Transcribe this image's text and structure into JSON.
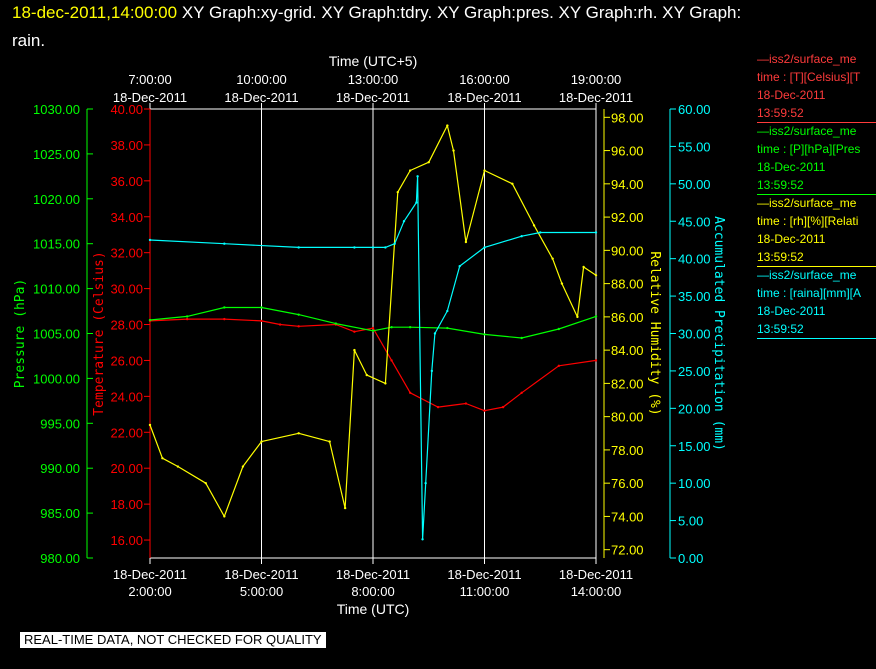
{
  "header": {
    "timestamp": "18-dec-2011,14:00:00",
    "graphs_line1": "XY Graph:xy-grid.  XY Graph:tdry.  XY Graph:pres.  XY Graph:rh.  XY Graph:",
    "graphs_line2": "rain."
  },
  "colors": {
    "pressure": "#00ff00",
    "temperature": "#ff0000",
    "humidity": "#ffff00",
    "precipitation": "#00ffff",
    "grid": "#ffffff"
  },
  "legend": [
    {
      "line1": "—iss2/surface_me",
      "line2": "time : [T][Celsius][T",
      "date": "18-Dec-2011",
      "time": "13:59:52",
      "color": "#ff3b3b"
    },
    {
      "line1": "—iss2/surface_me",
      "line2": "time : [P][hPa][Pres",
      "date": "18-Dec-2011",
      "time": "13:59:52",
      "color": "#00ff00"
    },
    {
      "line1": "—iss2/surface_me",
      "line2": "time : [rh][%][Relati",
      "date": "18-Dec-2011",
      "time": "13:59:52",
      "color": "#ffff00"
    },
    {
      "line1": "—iss2/surface_me",
      "line2": "time : [raina][mm][A",
      "date": "18-Dec-2011",
      "time": "13:59:52",
      "color": "#00ffff"
    }
  ],
  "warning": "REAL-TIME DATA, NOT CHECKED FOR QUALITY",
  "chart_data": {
    "type": "line",
    "title": "",
    "xlabel": "Time (UTC)",
    "x2label": "Time (UTC+5)",
    "xlim": [
      "02:00",
      "14:00"
    ],
    "x_ticks_bottom": [
      {
        "date": "18-Dec-2011",
        "time": "2:00:00"
      },
      {
        "date": "18-Dec-2011",
        "time": "5:00:00"
      },
      {
        "date": "18-Dec-2011",
        "time": "8:00:00"
      },
      {
        "date": "18-Dec-2011",
        "time": "11:00:00"
      },
      {
        "date": "18-Dec-2011",
        "time": "14:00:00"
      }
    ],
    "x_ticks_top": [
      {
        "time": "7:00:00",
        "date": "18-Dec-2011"
      },
      {
        "time": "10:00:00",
        "date": "18-Dec-2011"
      },
      {
        "time": "13:00:00",
        "date": "18-Dec-2011"
      },
      {
        "time": "16:00:00",
        "date": "18-Dec-2011"
      },
      {
        "time": "19:00:00",
        "date": "18-Dec-2011"
      }
    ],
    "axes": {
      "pressure": {
        "label": "Pressure (hPa)",
        "ylim": [
          980,
          1030
        ],
        "ticks": [
          "980.00",
          "985.00",
          "990.00",
          "995.00",
          "1000.00",
          "1005.00",
          "1010.00",
          "1015.00",
          "1020.00",
          "1025.00",
          "1030.00"
        ]
      },
      "temperature": {
        "label": "Temperature (Celsius)",
        "ylim": [
          15,
          40
        ],
        "ticks": [
          "16.00",
          "18.00",
          "20.00",
          "22.00",
          "24.00",
          "26.00",
          "28.00",
          "30.00",
          "32.00",
          "34.00",
          "36.00",
          "38.00",
          "40.00"
        ]
      },
      "humidity": {
        "label": "Relative Humidity (%)",
        "ylim": [
          71.5,
          98.5
        ],
        "ticks": [
          "72.00",
          "74.00",
          "76.00",
          "78.00",
          "80.00",
          "82.00",
          "84.00",
          "86.00",
          "88.00",
          "90.00",
          "92.00",
          "94.00",
          "96.00",
          "98.00"
        ]
      },
      "precipitation": {
        "label": "Accumulated Precipitation (mm)",
        "ylim": [
          0,
          60
        ],
        "ticks": [
          "0.00",
          "5.00",
          "10.00",
          "15.00",
          "20.00",
          "25.00",
          "30.00",
          "35.00",
          "40.00",
          "45.00",
          "50.00",
          "55.00",
          "60.00"
        ]
      }
    },
    "series": [
      {
        "axis": "temperature",
        "x": [
          "02:00",
          "03:00",
          "04:00",
          "05:00",
          "05:30",
          "06:00",
          "07:00",
          "07:30",
          "08:00",
          "08:30",
          "09:00",
          "09:45",
          "10:30",
          "11:00",
          "11:30",
          "12:00",
          "13:00",
          "14:00"
        ],
        "values": [
          28.2,
          28.3,
          28.3,
          28.2,
          28.0,
          27.9,
          28.0,
          27.6,
          27.8,
          26.0,
          24.2,
          23.4,
          23.6,
          23.2,
          23.4,
          24.2,
          25.7,
          26.0
        ]
      },
      {
        "axis": "pressure",
        "x": [
          "02:00",
          "03:00",
          "04:00",
          "05:00",
          "06:00",
          "07:00",
          "08:00",
          "08:30",
          "09:00",
          "10:00",
          "11:00",
          "12:00",
          "13:00",
          "14:00"
        ],
        "values": [
          1006.5,
          1006.9,
          1007.9,
          1007.9,
          1007.1,
          1006.1,
          1005.3,
          1005.7,
          1005.7,
          1005.6,
          1004.9,
          1004.5,
          1005.5,
          1006.9
        ]
      },
      {
        "axis": "humidity",
        "x": [
          "02:00",
          "02:20",
          "02:45",
          "03:30",
          "04:00",
          "04:30",
          "05:00",
          "06:00",
          "06:50",
          "07:15",
          "07:30",
          "07:50",
          "08:20",
          "08:40",
          "09:00",
          "09:30",
          "10:00",
          "10:10",
          "10:30",
          "11:00",
          "11:45",
          "12:20",
          "12:50",
          "13:05",
          "13:30",
          "13:40",
          "14:00"
        ],
        "values": [
          79.5,
          77.5,
          77.0,
          76.0,
          74.0,
          77.0,
          78.5,
          79.0,
          78.5,
          74.5,
          84.0,
          82.5,
          82.0,
          93.5,
          94.8,
          95.3,
          97.5,
          96.0,
          90.5,
          94.8,
          94.0,
          91.5,
          89.5,
          88.0,
          86.0,
          89.0,
          88.5
        ]
      },
      {
        "axis": "precipitation",
        "x": [
          "02:00",
          "04:00",
          "06:00",
          "07:30",
          "08:00",
          "08:20",
          "08:35",
          "08:50",
          "09:10",
          "09:12",
          "09:20",
          "09:25",
          "09:35",
          "09:40",
          "10:00",
          "10:20",
          "11:00",
          "12:00",
          "12:30",
          "14:00"
        ],
        "values": [
          42.5,
          42.0,
          41.5,
          41.5,
          41.5,
          41.5,
          42.0,
          45.0,
          47.5,
          51.0,
          2.5,
          10.0,
          25.0,
          30.0,
          33.0,
          39.0,
          41.5,
          43.0,
          43.5,
          43.5
        ]
      }
    ]
  }
}
